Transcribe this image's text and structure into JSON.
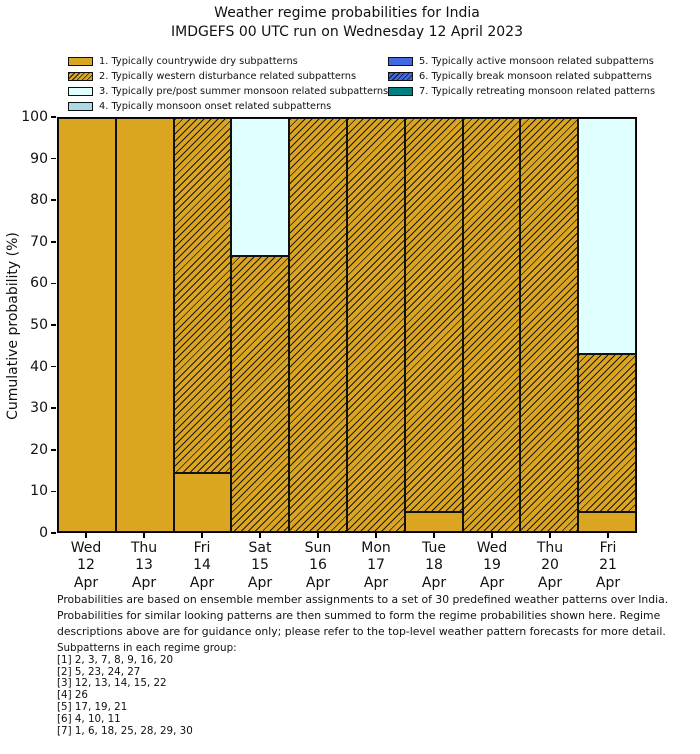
{
  "chart_data": {
    "type": "bar",
    "stacked": true,
    "title": "Weather regime probabilities for India",
    "subtitle": "IMDGEFS 00 UTC run on Wednesday 12 April 2023",
    "ylabel": "Cumulative probability (%)",
    "ylim": [
      0,
      100
    ],
    "yticks": [
      0,
      10,
      20,
      30,
      40,
      50,
      60,
      70,
      80,
      90,
      100
    ],
    "grid": false,
    "legend_position": "top-two-columns",
    "bar_edge_color": "#111111",
    "categories": [
      "Wed 12 Apr",
      "Thu 13 Apr",
      "Fri 14 Apr",
      "Sat 15 Apr",
      "Sun 16 Apr",
      "Mon 17 Apr",
      "Tue 18 Apr",
      "Wed 19 Apr",
      "Thu 20 Apr",
      "Fri 21 Apr"
    ],
    "series": [
      {
        "name": "1. Typically countrywide dry subpatterns",
        "color": "#daa520",
        "hatch": false,
        "values": [
          100,
          100,
          14.3,
          0,
          0,
          0,
          4.8,
          0,
          0,
          4.8
        ]
      },
      {
        "name": "2. Typically western disturbance related subpatterns",
        "color": "#daa520",
        "hatch": true,
        "values": [
          0,
          0,
          85.7,
          66.7,
          100,
          100,
          95.2,
          100,
          100,
          38.1
        ]
      },
      {
        "name": "3. Typically pre/post summer monsoon related subpatterns",
        "color": "#e0ffff",
        "hatch": false,
        "values": [
          0,
          0,
          0,
          33.3,
          0,
          0,
          0,
          0,
          0,
          57.1
        ]
      },
      {
        "name": "4. Typically monsoon onset related subpatterns",
        "color": "#add8e6",
        "hatch": false,
        "values": [
          0,
          0,
          0,
          0,
          0,
          0,
          0,
          0,
          0,
          0
        ]
      },
      {
        "name": "5. Typically active monsoon related subpatterns",
        "color": "#4169e1",
        "hatch": false,
        "values": [
          0,
          0,
          0,
          0,
          0,
          0,
          0,
          0,
          0,
          0
        ]
      },
      {
        "name": "6. Typically break monsoon related subpatterns",
        "color": "#4169e1",
        "hatch": true,
        "values": [
          0,
          0,
          0,
          0,
          0,
          0,
          0,
          0,
          0,
          0
        ]
      },
      {
        "name": "7. Typically retreating monsoon related patterns",
        "color": "#008080",
        "hatch": false,
        "values": [
          0,
          0,
          0,
          0,
          0,
          0,
          0,
          0,
          0,
          0
        ]
      }
    ]
  },
  "footnote": {
    "lines": [
      "Probabilities are based on ensemble member assignments to a set of 30 predefined weather patterns over India.",
      "Probabilities for similar looking patterns are then summed to form the regime probabilities shown here. Regime",
      "descriptions above are for guidance only; please refer to the top-level weather pattern forecasts for more detail."
    ]
  },
  "subpatterns": {
    "header": "Subpatterns in each regime group:",
    "groups": [
      "[1] 2, 3, 7, 8, 9, 16, 20",
      "[2] 5, 23, 24, 27",
      "[3] 12, 13, 14, 15, 22",
      "[4] 26",
      "[5] 17, 19, 21",
      "[6] 4, 10, 11",
      "[7] 1, 6, 18, 25, 28, 29, 30"
    ]
  }
}
